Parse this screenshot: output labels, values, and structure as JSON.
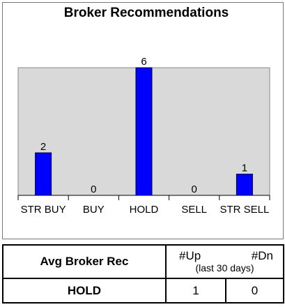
{
  "chart_data": {
    "type": "bar",
    "title": "Broker Recommendations",
    "categories": [
      "STR BUY",
      "BUY",
      "HOLD",
      "SELL",
      "STR SELL"
    ],
    "values": [
      2,
      0,
      6,
      0,
      1
    ],
    "color": "#0000ff",
    "ylim": [
      0,
      6
    ]
  },
  "table": {
    "header": {
      "label": "Avg Broker Rec",
      "up": "#Up",
      "dn": "#Dn",
      "period": "(last 30 days)"
    },
    "rows": [
      [
        "HOLD",
        1,
        0
      ]
    ]
  }
}
